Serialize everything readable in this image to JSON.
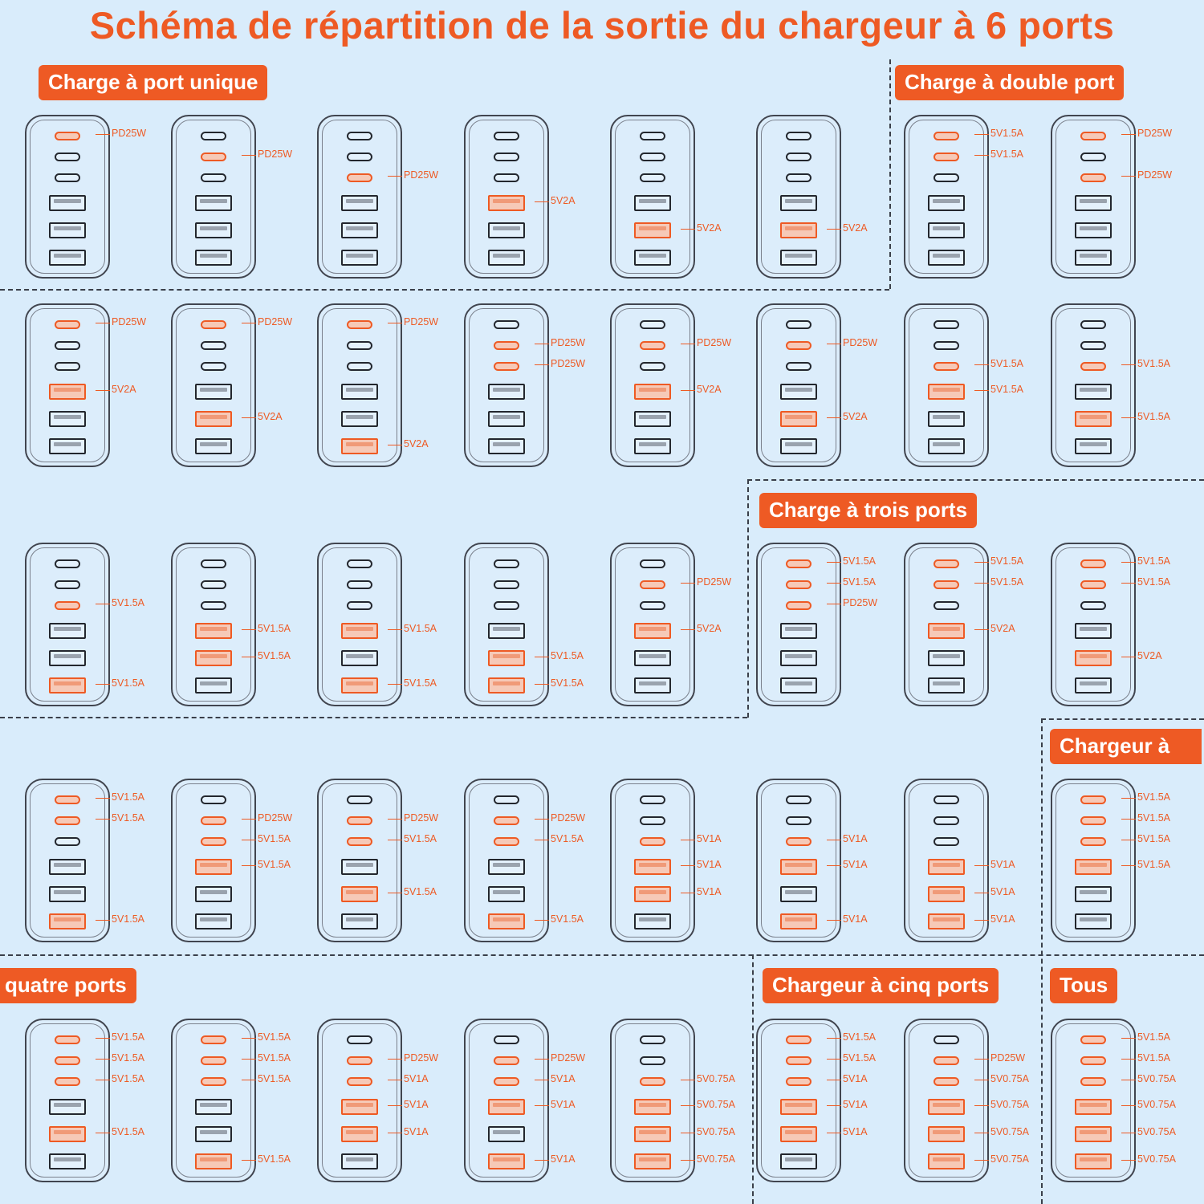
{
  "title": "Schéma de répartition de la sortie du chargeur à 6 ports",
  "section_titles": {
    "single": "Charge à port unique",
    "double": "Charge à double port",
    "triple": "Charge à trois ports",
    "quad_part1": "Chargeur à",
    "quad_part2": "quatre ports",
    "five": "Chargeur à cinq ports",
    "all": "Tous"
  },
  "colors": {
    "accent": "#ee5a24",
    "background": "#d9ecfb",
    "port_inactive": "#23272e"
  },
  "port_order": [
    "USB-C 1",
    "USB-C 2",
    "USB-C 3",
    "USB-A 1",
    "USB-A 2",
    "USB-A 3"
  ],
  "chargers": [
    {
      "section": "single",
      "ports": [
        {
          "port": 1,
          "label": "PD25W"
        }
      ]
    },
    {
      "section": "single",
      "ports": [
        {
          "port": 2,
          "label": "PD25W"
        }
      ]
    },
    {
      "section": "single",
      "ports": [
        {
          "port": 3,
          "label": "PD25W"
        }
      ]
    },
    {
      "section": "single",
      "ports": [
        {
          "port": 4,
          "label": "5V2A"
        }
      ]
    },
    {
      "section": "single",
      "ports": [
        {
          "port": 5,
          "label": "5V2A"
        }
      ]
    },
    {
      "section": "single",
      "ports": [
        {
          "port": 5,
          "label": "5V2A"
        }
      ]
    },
    {
      "section": "double",
      "ports": [
        {
          "port": 1,
          "label": "5V1.5A"
        },
        {
          "port": 2,
          "label": "5V1.5A"
        }
      ]
    },
    {
      "section": "double",
      "ports": [
        {
          "port": 1,
          "label": "PD25W"
        },
        {
          "port": 3,
          "label": "PD25W"
        }
      ]
    },
    {
      "section": "double",
      "ports": [
        {
          "port": 1,
          "label": "PD25W"
        },
        {
          "port": 4,
          "label": "5V2A"
        }
      ]
    },
    {
      "section": "double",
      "ports": [
        {
          "port": 1,
          "label": "PD25W"
        },
        {
          "port": 5,
          "label": "5V2A"
        }
      ]
    },
    {
      "section": "double",
      "ports": [
        {
          "port": 1,
          "label": "PD25W"
        },
        {
          "port": 6,
          "label": "5V2A"
        }
      ]
    },
    {
      "section": "double",
      "ports": [
        {
          "port": 2,
          "label": "PD25W"
        },
        {
          "port": 3,
          "label": "PD25W"
        }
      ]
    },
    {
      "section": "double",
      "ports": [
        {
          "port": 2,
          "label": "PD25W"
        },
        {
          "port": 4,
          "label": "5V2A"
        }
      ]
    },
    {
      "section": "double",
      "ports": [
        {
          "port": 2,
          "label": "PD25W"
        },
        {
          "port": 5,
          "label": "5V2A"
        }
      ]
    },
    {
      "section": "double",
      "ports": [
        {
          "port": 3,
          "label": "5V1.5A"
        },
        {
          "port": 4,
          "label": "5V1.5A"
        }
      ]
    },
    {
      "section": "double",
      "ports": [
        {
          "port": 3,
          "label": "5V1.5A"
        },
        {
          "port": 5,
          "label": "5V1.5A"
        }
      ]
    },
    {
      "section": "double",
      "ports": [
        {
          "port": 3,
          "label": "5V1.5A"
        },
        {
          "port": 6,
          "label": "5V1.5A"
        }
      ]
    },
    {
      "section": "double",
      "ports": [
        {
          "port": 4,
          "label": "5V1.5A"
        },
        {
          "port": 5,
          "label": "5V1.5A"
        }
      ]
    },
    {
      "section": "double",
      "ports": [
        {
          "port": 4,
          "label": "5V1.5A"
        },
        {
          "port": 6,
          "label": "5V1.5A"
        }
      ]
    },
    {
      "section": "double",
      "ports": [
        {
          "port": 5,
          "label": "5V1.5A"
        },
        {
          "port": 6,
          "label": "5V1.5A"
        }
      ]
    },
    {
      "section": "double",
      "ports": [
        {
          "port": 2,
          "label": "PD25W"
        },
        {
          "port": 4,
          "label": "5V2A"
        }
      ]
    },
    {
      "section": "triple",
      "ports": [
        {
          "port": 1,
          "label": "5V1.5A"
        },
        {
          "port": 2,
          "label": "5V1.5A"
        },
        {
          "port": 3,
          "label": "PD25W"
        }
      ]
    },
    {
      "section": "triple",
      "ports": [
        {
          "port": 1,
          "label": "5V1.5A"
        },
        {
          "port": 2,
          "label": "5V1.5A"
        },
        {
          "port": 4,
          "label": "5V2A"
        }
      ]
    },
    {
      "section": "triple",
      "ports": [
        {
          "port": 1,
          "label": "5V1.5A"
        },
        {
          "port": 2,
          "label": "5V1.5A"
        },
        {
          "port": 5,
          "label": "5V2A"
        }
      ]
    },
    {
      "section": "triple",
      "ports": [
        {
          "port": 1,
          "label": "5V1.5A"
        },
        {
          "port": 2,
          "label": "5V1.5A"
        },
        {
          "port": 6,
          "label": "5V1.5A"
        }
      ]
    },
    {
      "section": "triple",
      "ports": [
        {
          "port": 2,
          "label": "PD25W"
        },
        {
          "port": 3,
          "label": "5V1.5A"
        },
        {
          "port": 4,
          "label": "5V1.5A"
        }
      ]
    },
    {
      "section": "triple",
      "ports": [
        {
          "port": 2,
          "label": "PD25W"
        },
        {
          "port": 3,
          "label": "5V1.5A"
        },
        {
          "port": 5,
          "label": "5V1.5A"
        }
      ]
    },
    {
      "section": "triple",
      "ports": [
        {
          "port": 2,
          "label": "PD25W"
        },
        {
          "port": 3,
          "label": "5V1.5A"
        },
        {
          "port": 6,
          "label": "5V1.5A"
        }
      ]
    },
    {
      "section": "triple",
      "ports": [
        {
          "port": 3,
          "label": "5V1A"
        },
        {
          "port": 4,
          "label": "5V1A"
        },
        {
          "port": 5,
          "label": "5V1A"
        }
      ]
    },
    {
      "section": "triple",
      "ports": [
        {
          "port": 3,
          "label": "5V1A"
        },
        {
          "port": 4,
          "label": "5V1A"
        },
        {
          "port": 6,
          "label": "5V1A"
        }
      ]
    },
    {
      "section": "triple",
      "ports": [
        {
          "port": 4,
          "label": "5V1A"
        },
        {
          "port": 5,
          "label": "5V1A"
        },
        {
          "port": 6,
          "label": "5V1A"
        }
      ]
    },
    {
      "section": "quad",
      "ports": [
        {
          "port": 1,
          "label": "5V1.5A"
        },
        {
          "port": 2,
          "label": "5V1.5A"
        },
        {
          "port": 3,
          "label": "5V1.5A"
        },
        {
          "port": 4,
          "label": "5V1.5A"
        }
      ]
    },
    {
      "section": "quad",
      "ports": [
        {
          "port": 1,
          "label": "5V1.5A"
        },
        {
          "port": 2,
          "label": "5V1.5A"
        },
        {
          "port": 3,
          "label": "5V1.5A"
        },
        {
          "port": 5,
          "label": "5V1.5A"
        }
      ]
    },
    {
      "section": "quad",
      "ports": [
        {
          "port": 1,
          "label": "5V1.5A"
        },
        {
          "port": 2,
          "label": "5V1.5A"
        },
        {
          "port": 3,
          "label": "5V1.5A"
        },
        {
          "port": 6,
          "label": "5V1.5A"
        }
      ]
    },
    {
      "section": "quad",
      "ports": [
        {
          "port": 2,
          "label": "PD25W"
        },
        {
          "port": 3,
          "label": "5V1A"
        },
        {
          "port": 4,
          "label": "5V1A"
        },
        {
          "port": 5,
          "label": "5V1A"
        }
      ]
    },
    {
      "section": "quad",
      "ports": [
        {
          "port": 2,
          "label": "PD25W"
        },
        {
          "port": 3,
          "label": "5V1A"
        },
        {
          "port": 4,
          "label": "5V1A"
        },
        {
          "port": 6,
          "label": "5V1A"
        }
      ]
    },
    {
      "section": "quad",
      "ports": [
        {
          "port": 3,
          "label": "5V0.75A"
        },
        {
          "port": 4,
          "label": "5V0.75A"
        },
        {
          "port": 5,
          "label": "5V0.75A"
        },
        {
          "port": 6,
          "label": "5V0.75A"
        }
      ]
    },
    {
      "section": "five",
      "ports": [
        {
          "port": 1,
          "label": "5V1.5A"
        },
        {
          "port": 2,
          "label": "5V1.5A"
        },
        {
          "port": 3,
          "label": "5V1A"
        },
        {
          "port": 4,
          "label": "5V1A"
        },
        {
          "port": 5,
          "label": "5V1A"
        }
      ]
    },
    {
      "section": "five",
      "ports": [
        {
          "port": 2,
          "label": "PD25W"
        },
        {
          "port": 3,
          "label": "5V0.75A"
        },
        {
          "port": 4,
          "label": "5V0.75A"
        },
        {
          "port": 5,
          "label": "5V0.75A"
        },
        {
          "port": 6,
          "label": "5V0.75A"
        }
      ]
    },
    {
      "section": "all",
      "ports": [
        {
          "port": 1,
          "label": "5V1.5A"
        },
        {
          "port": 2,
          "label": "5V1.5A"
        },
        {
          "port": 3,
          "label": "5V0.75A"
        },
        {
          "port": 4,
          "label": "5V0.75A"
        },
        {
          "port": 5,
          "label": "5V0.75A"
        },
        {
          "port": 6,
          "label": "5V0.75A"
        }
      ]
    }
  ]
}
